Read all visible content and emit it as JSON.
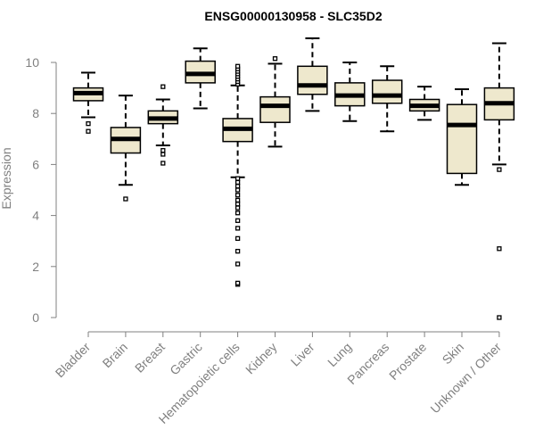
{
  "chart_data": {
    "type": "boxplot",
    "title": "ENSG00000130958 - SLC35D2",
    "ylabel": "Expression",
    "xlabel": "",
    "ylim": [
      0,
      10
    ],
    "yticks": [
      0,
      2,
      4,
      6,
      8,
      10
    ],
    "colors": {
      "box_fill": "#EEE8CD",
      "box_stroke": "#000000",
      "axis": "#808080"
    },
    "categories": [
      "Bladder",
      "Brain",
      "Breast",
      "Gastric",
      "Hematopoietic cells",
      "Kidney",
      "Liver",
      "Lung",
      "Pancreas",
      "Prostate",
      "Skin",
      "Unknown / Other"
    ],
    "boxes": [
      {
        "category": "Bladder",
        "whisker_low": 7.85,
        "q1": 8.5,
        "median": 8.8,
        "q3": 9.0,
        "whisker_high": 9.6,
        "outliers": [
          7.3,
          7.6
        ]
      },
      {
        "category": "Brain",
        "whisker_low": 5.2,
        "q1": 6.45,
        "median": 7.0,
        "q3": 7.45,
        "whisker_high": 8.7,
        "outliers": [
          4.65
        ]
      },
      {
        "category": "Breast",
        "whisker_low": 6.75,
        "q1": 7.6,
        "median": 7.8,
        "q3": 8.1,
        "whisker_high": 8.55,
        "outliers": [
          6.05,
          6.4,
          6.55,
          9.05
        ]
      },
      {
        "category": "Gastric",
        "whisker_low": 8.2,
        "q1": 9.2,
        "median": 9.55,
        "q3": 10.05,
        "whisker_high": 10.55,
        "outliers": []
      },
      {
        "category": "Hematopoietic cells",
        "whisker_low": 5.5,
        "q1": 6.9,
        "median": 7.4,
        "q3": 7.8,
        "whisker_high": 9.1,
        "outliers": [
          1.3,
          1.35,
          2.1,
          2.6,
          3.1,
          3.5,
          3.8,
          4.1,
          4.3,
          4.45,
          4.6,
          4.8,
          5.0,
          5.15,
          5.3,
          5.45,
          9.15,
          9.25,
          9.35,
          9.45,
          9.55,
          9.65,
          9.75,
          9.85
        ]
      },
      {
        "category": "Kidney",
        "whisker_low": 6.7,
        "q1": 7.65,
        "median": 8.3,
        "q3": 8.65,
        "whisker_high": 9.95,
        "outliers": [
          10.15
        ]
      },
      {
        "category": "Liver",
        "whisker_low": 8.1,
        "q1": 8.75,
        "median": 9.1,
        "q3": 9.85,
        "whisker_high": 10.95,
        "outliers": []
      },
      {
        "category": "Lung",
        "whisker_low": 7.7,
        "q1": 8.3,
        "median": 8.7,
        "q3": 9.2,
        "whisker_high": 10.0,
        "outliers": []
      },
      {
        "category": "Pancreas",
        "whisker_low": 7.3,
        "q1": 8.4,
        "median": 8.7,
        "q3": 9.3,
        "whisker_high": 9.85,
        "outliers": []
      },
      {
        "category": "Prostate",
        "whisker_low": 7.75,
        "q1": 8.1,
        "median": 8.3,
        "q3": 8.55,
        "whisker_high": 9.05,
        "outliers": []
      },
      {
        "category": "Skin",
        "whisker_low": 5.2,
        "q1": 5.65,
        "median": 7.55,
        "q3": 8.35,
        "whisker_high": 8.95,
        "outliers": []
      },
      {
        "category": "Unknown / Other",
        "whisker_low": 6.0,
        "q1": 7.75,
        "median": 8.4,
        "q3": 9.0,
        "whisker_high": 10.75,
        "outliers": [
          0.0,
          2.7,
          5.8
        ]
      }
    ]
  }
}
